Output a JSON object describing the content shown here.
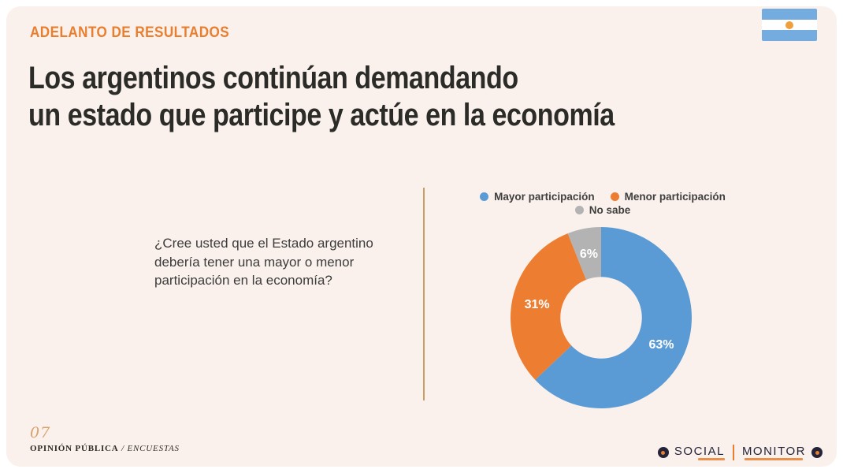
{
  "slide": {
    "kicker": "ADELANTO DE RESULTADOS",
    "title_line1": "Los argentinos continúan demandando",
    "title_line2": "un estado que participe y actúe en la economía",
    "question": "¿Cree usted que el Estado argentino debería tener una mayor o menor participación en la economía?",
    "page_number": "07",
    "footer_left_main": "OPINIÓN PÚBLICA",
    "footer_left_sep": " / ",
    "footer_left_italic": "ENCUESTAS",
    "brand_left": "SOCIAL",
    "brand_right": "MONITOR"
  },
  "legend": {
    "items": [
      {
        "label": "Mayor participación",
        "color": "#5B9BD5"
      },
      {
        "label": "Menor participación",
        "color": "#ED7D31"
      },
      {
        "label": "No sabe",
        "color": "#B3B3B3"
      }
    ]
  },
  "chart_data": {
    "type": "pie",
    "donut": true,
    "title": "",
    "categories": [
      "Mayor participación",
      "Menor participación",
      "No sabe"
    ],
    "values": [
      63,
      31,
      6
    ],
    "labels": [
      "63%",
      "31%",
      "6%"
    ],
    "colors": [
      "#5B9BD5",
      "#ED7D31",
      "#B3B3B3"
    ],
    "inner_radius_ratio": 0.45,
    "start_angle_deg": 0,
    "direction": "clockwise",
    "legend_position": "top"
  },
  "colors": {
    "slide_background": "#FAF1EC",
    "accent_orange": "#E87E2E",
    "title_text": "#2B2B28",
    "divider_tan": "#C99E63",
    "flag_blue": "#74ACDF",
    "flag_sun": "#EFA03C",
    "brand_navy": "#23233A"
  },
  "flag": {
    "name": "argentina-flag"
  }
}
